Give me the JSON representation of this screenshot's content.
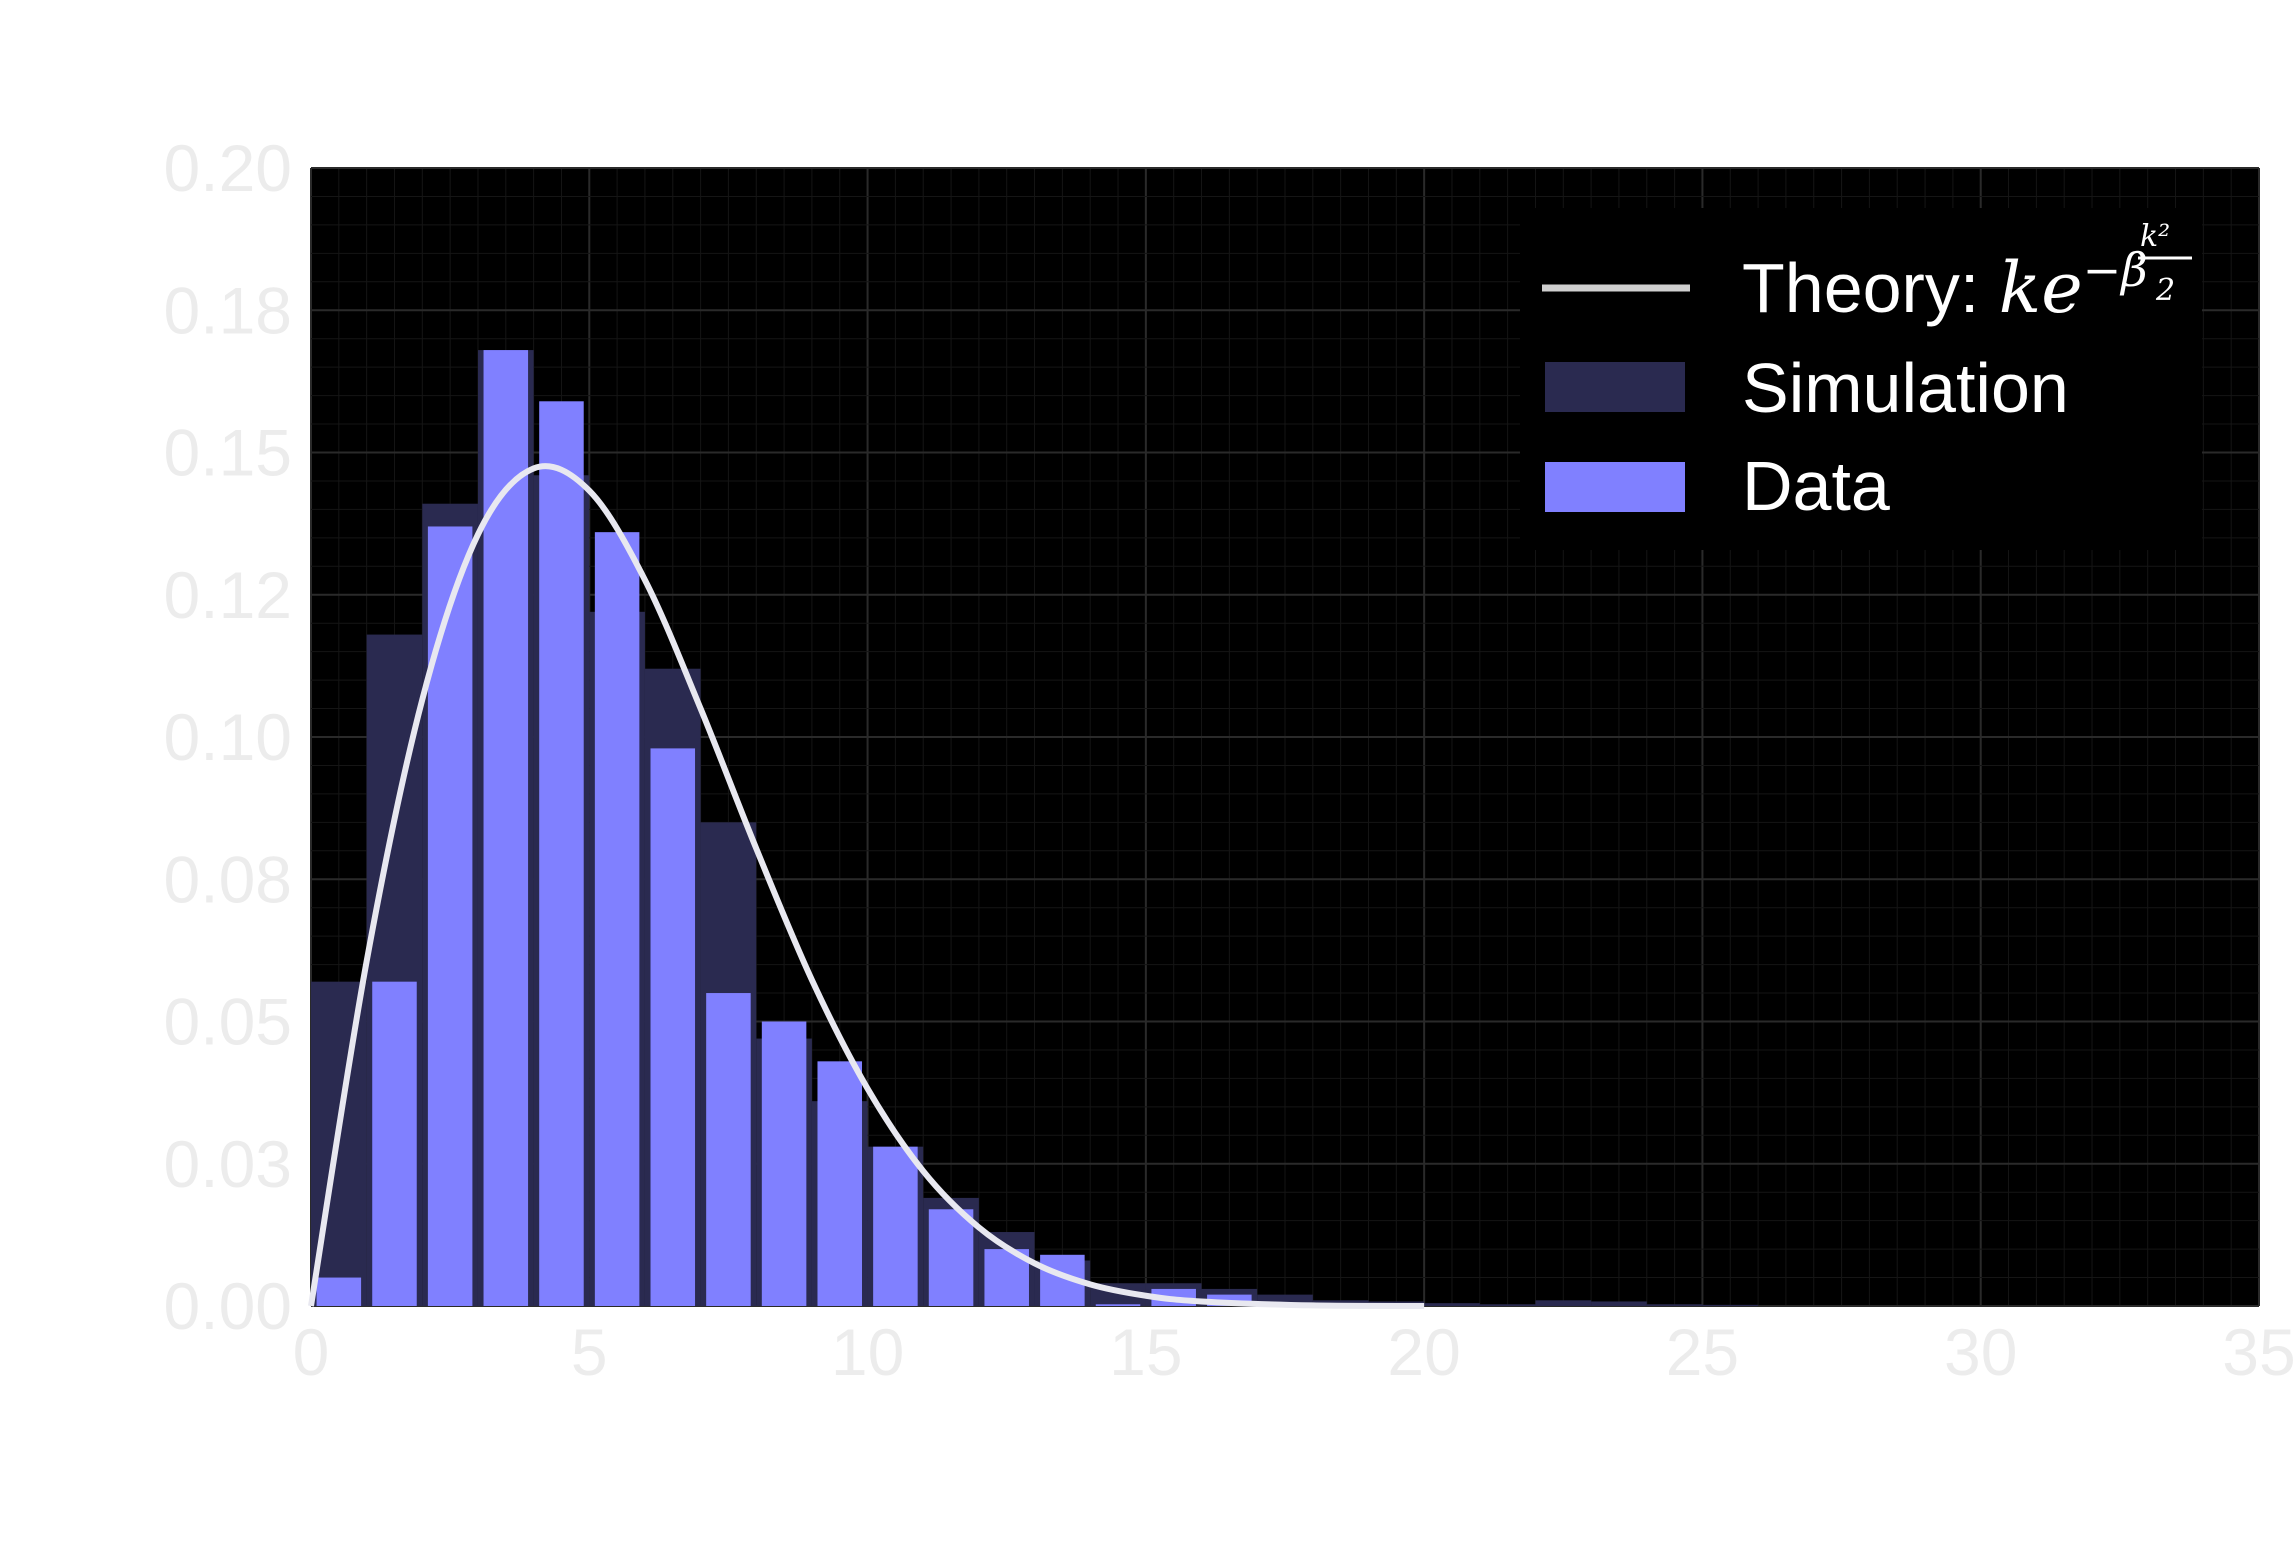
{
  "chart_data": {
    "type": "bar",
    "title": "",
    "xlabel": "",
    "ylabel": "",
    "xlim": [
      0,
      35
    ],
    "ylim": [
      0,
      0.2
    ],
    "x_ticks": [
      "0",
      "5",
      "10",
      "15",
      "20",
      "25",
      "30",
      "35"
    ],
    "y_ticks": [
      "0.00",
      "0.03",
      "0.05",
      "0.08",
      "0.10",
      "0.12",
      "0.15",
      "0.18",
      "0.20"
    ],
    "grid": true,
    "background": "#000000",
    "legend_position": "top-right",
    "legend": {
      "theory_label": "Theory: ",
      "theory_formula": {
        "k": "k",
        "e": "e",
        "minus": "−",
        "beta": "β",
        "num": "k²",
        "den": "2"
      },
      "simulation_label": "Simulation",
      "data_label": "Data"
    },
    "series": [
      {
        "name": "Simulation",
        "color": "#2a2a50",
        "bin_width": 1,
        "x": [
          0.5,
          1.5,
          2.5,
          3.5,
          4.5,
          5.5,
          6.5,
          7.5,
          8.5,
          9.5,
          10.5,
          11.5,
          12.5,
          13.5,
          14.5,
          15.5,
          16.5,
          17.5,
          18.5,
          19.5,
          20.5,
          21.5,
          22.5,
          23.5,
          24.5,
          25.5
        ],
        "values": [
          0.057,
          0.118,
          0.141,
          0.168,
          0.146,
          0.122,
          0.112,
          0.085,
          0.047,
          0.036,
          0.028,
          0.019,
          0.013,
          0.008,
          0.004,
          0.004,
          0.003,
          0.002,
          0.001,
          0.0008,
          0.0005,
          0.0003,
          0.001,
          0.0008,
          0.0003,
          0.0002
        ]
      },
      {
        "name": "Data",
        "color": "#8080ff",
        "bin_width": 1,
        "x": [
          0.5,
          1.5,
          2.5,
          3.5,
          4.5,
          5.5,
          6.5,
          7.5,
          8.5,
          9.5,
          10.5,
          11.5,
          12.5,
          13.5,
          14.5,
          15.5,
          16.5
        ],
        "values": [
          0.005,
          0.057,
          0.137,
          0.168,
          0.159,
          0.136,
          0.098,
          0.055,
          0.05,
          0.043,
          0.028,
          0.017,
          0.01,
          0.009,
          0.0003,
          0.003,
          0.002
        ]
      },
      {
        "name": "Theory",
        "type": "line",
        "color": "#e8e8f0",
        "x": [
          0,
          1,
          2,
          3,
          4,
          5,
          6,
          7,
          8,
          9,
          10,
          11,
          12,
          13,
          14,
          15,
          16,
          18,
          20
        ],
        "values": [
          0.0,
          0.0606,
          0.1066,
          0.1356,
          0.1472,
          0.1433,
          0.1276,
          0.105,
          0.0804,
          0.0573,
          0.0382,
          0.0237,
          0.0138,
          0.0075,
          0.0038,
          0.0018,
          0.0008,
          0.0001,
          0.0
        ]
      }
    ]
  }
}
